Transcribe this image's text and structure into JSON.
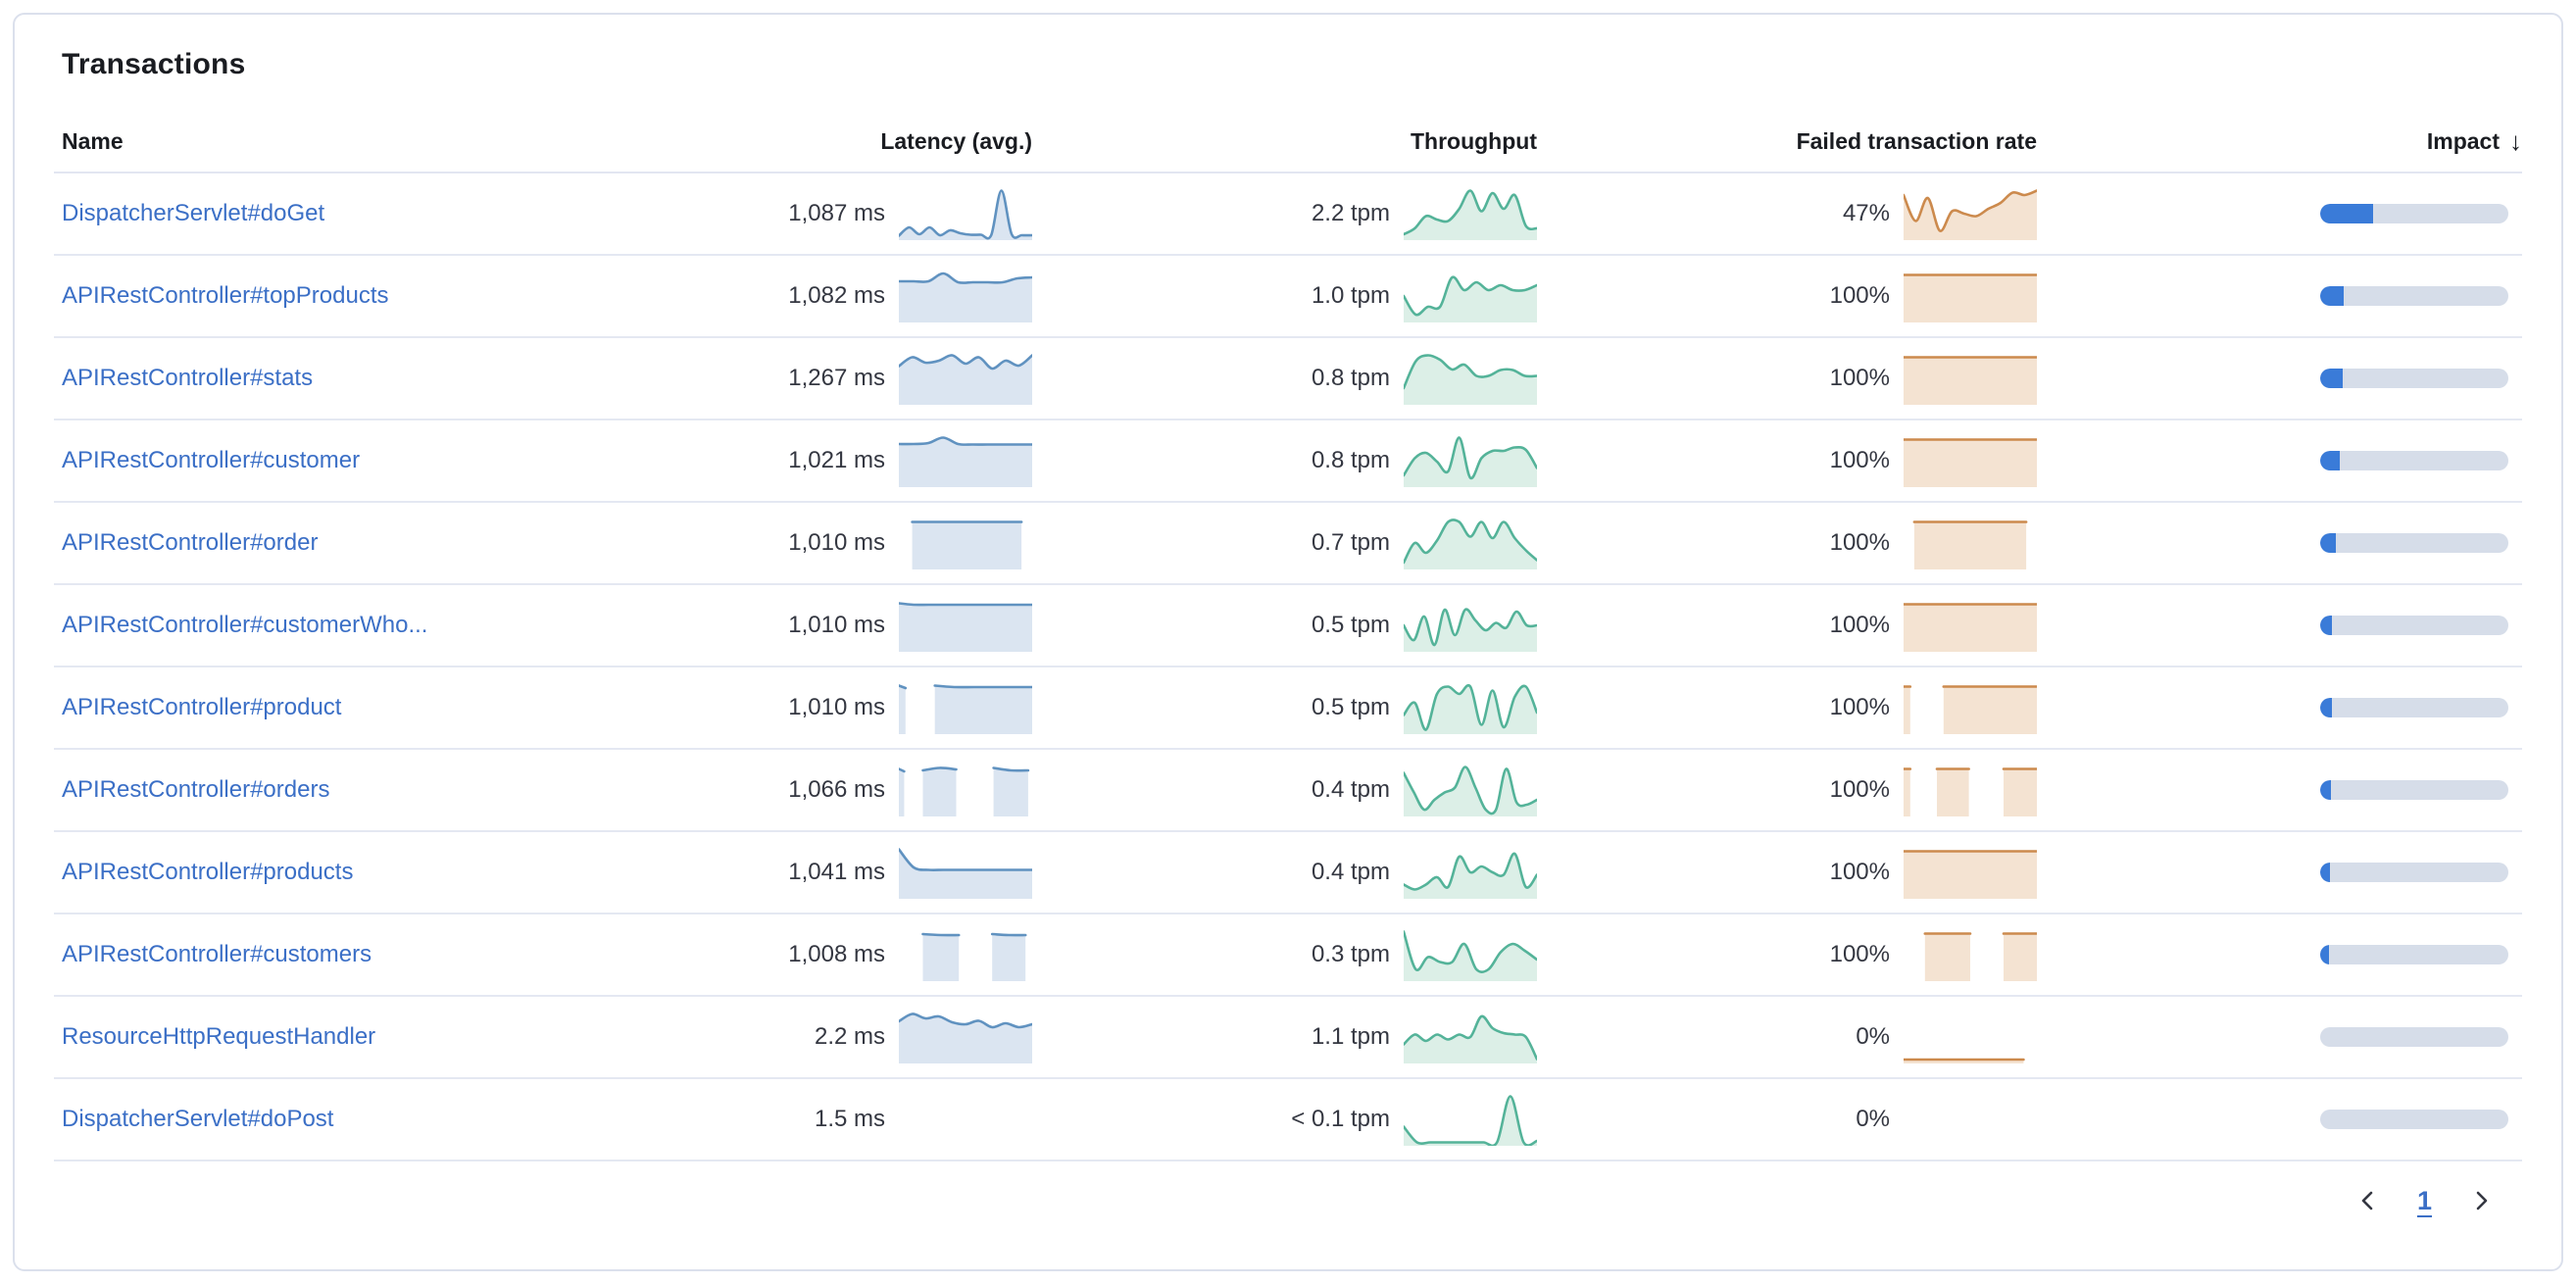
{
  "card": {
    "title": "Transactions"
  },
  "colors": {
    "link": "#3b6fc6",
    "latency_stroke": "#6092c0",
    "latency_fill": "#dbe5f1",
    "throughput_stroke": "#54b399",
    "throughput_fill": "#dcefe7",
    "failed_stroke": "#cc8a4d",
    "failed_fill": "#f4e3d2",
    "impact_fill": "#3a7bd8",
    "impact_track": "#d6dde9",
    "row_border": "#e4e8f2"
  },
  "table": {
    "sort_icon": "↓",
    "columns": [
      {
        "label": "Name"
      },
      {
        "label": "Latency (avg.)"
      },
      {
        "label": "Throughput"
      },
      {
        "label": "Failed transaction rate"
      },
      {
        "label": "Impact",
        "sorted": "desc"
      }
    ],
    "rows": [
      {
        "name": "DispatcherServlet#doGet",
        "latency": "1,087 ms",
        "throughput": "2.2 tpm",
        "failed_rate": "47%",
        "impact_pct": 28,
        "sparklines": {
          "latency": {
            "segments": [
              {
                "x0": 0,
                "x1": 1,
                "y": [
                  0.05,
                  0.22,
                  0.08,
                  0.22,
                  0.06,
                  0.16,
                  0.1,
                  0.07,
                  0.07,
                  0.06,
                  0.97,
                  0.08,
                  0.06,
                  0.06
                ]
              }
            ]
          },
          "throughput": {
            "segments": [
              {
                "x0": 0,
                "x1": 1,
                "y": [
                  0.08,
                  0.2,
                  0.45,
                  0.38,
                  0.35,
                  0.6,
                  0.97,
                  0.55,
                  0.92,
                  0.6,
                  0.88,
                  0.25,
                  0.2
                ]
              }
            ]
          },
          "failed": {
            "segments": [
              {
                "x0": 0,
                "x1": 1,
                "y": [
                  0.88,
                  0.35,
                  0.82,
                  0.15,
                  0.55,
                  0.5,
                  0.45,
                  0.6,
                  0.72,
                  0.93,
                  0.88,
                  0.97
                ]
              }
            ]
          }
        }
      },
      {
        "name": "APIRestController#topProducts",
        "latency": "1,082 ms",
        "throughput": "1.0 tpm",
        "failed_rate": "100%",
        "impact_pct": 12.5,
        "sparklines": {
          "latency": {
            "segments": [
              {
                "x0": 0,
                "x1": 1,
                "y": [
                  0.8,
                  0.8,
                  0.8,
                  0.96,
                  0.78,
                  0.78,
                  0.78,
                  0.78,
                  0.86,
                  0.88
                ]
              }
            ]
          },
          "throughput": {
            "segments": [
              {
                "x0": 0,
                "x1": 1,
                "y": [
                  0.5,
                  0.12,
                  0.28,
                  0.28,
                  0.88,
                  0.62,
                  0.78,
                  0.62,
                  0.72,
                  0.62,
                  0.62,
                  0.72
                ]
              }
            ]
          },
          "failed": {
            "segments": [
              {
                "x0": 0,
                "x1": 1,
                "y": [
                  0.93,
                  0.93
                ]
              }
            ]
          }
        }
      },
      {
        "name": "APIRestController#stats",
        "latency": "1,267 ms",
        "throughput": "0.8 tpm",
        "failed_rate": "100%",
        "impact_pct": 12,
        "sparklines": {
          "latency": {
            "segments": [
              {
                "x0": 0,
                "x1": 1,
                "y": [
                  0.75,
                  0.93,
                  0.82,
                  0.86,
                  0.97,
                  0.8,
                  0.93,
                  0.7,
                  0.86,
                  0.76,
                  0.97
                ]
              }
            ]
          },
          "throughput": {
            "segments": [
              {
                "x0": 0,
                "x1": 1,
                "y": [
                  0.3,
                  0.85,
                  0.97,
                  0.88,
                  0.68,
                  0.78,
                  0.55,
                  0.55,
                  0.67,
                  0.67,
                  0.55,
                  0.55
                ]
              }
            ]
          },
          "failed": {
            "segments": [
              {
                "x0": 0,
                "x1": 1,
                "y": [
                  0.93,
                  0.93
                ]
              }
            ]
          }
        }
      },
      {
        "name": "APIRestController#customer",
        "latency": "1,021 ms",
        "throughput": "0.8 tpm",
        "failed_rate": "100%",
        "impact_pct": 10.5,
        "sparklines": {
          "latency": {
            "segments": [
              {
                "x0": 0,
                "x1": 1,
                "y": [
                  0.84,
                  0.84,
                  0.86,
                  0.97,
                  0.84,
                  0.83,
                  0.83,
                  0.83,
                  0.83,
                  0.83
                ]
              }
            ]
          },
          "throughput": {
            "segments": [
              {
                "x0": 0,
                "x1": 1,
                "y": [
                  0.2,
                  0.55,
                  0.66,
                  0.48,
                  0.28,
                  0.97,
                  0.15,
                  0.55,
                  0.7,
                  0.7,
                  0.77,
                  0.72,
                  0.35
                ]
              }
            ]
          },
          "failed": {
            "segments": [
              {
                "x0": 0,
                "x1": 1,
                "y": [
                  0.93,
                  0.93
                ]
              }
            ]
          }
        }
      },
      {
        "name": "APIRestController#order",
        "latency": "1,010 ms",
        "throughput": "0.7 tpm",
        "failed_rate": "100%",
        "impact_pct": 8.5,
        "sparklines": {
          "latency": {
            "segments": [
              {
                "x0": 0.1,
                "x1": 0.92,
                "y": [
                  0.93,
                  0.93
                ]
              }
            ]
          },
          "throughput": {
            "segments": [
              {
                "x0": 0,
                "x1": 1,
                "y": [
                  0.1,
                  0.5,
                  0.3,
                  0.55,
                  0.93,
                  0.93,
                  0.63,
                  0.93,
                  0.6,
                  0.93,
                  0.6,
                  0.35,
                  0.15
                ]
              }
            ]
          },
          "failed": {
            "segments": [
              {
                "x0": 0.08,
                "x1": 0.92,
                "y": [
                  0.93,
                  0.93
                ]
              }
            ]
          }
        }
      },
      {
        "name": "APIRestController#customerWho...",
        "latency": "1,010 ms",
        "throughput": "0.5 tpm",
        "failed_rate": "100%",
        "impact_pct": 6.5,
        "sparklines": {
          "latency": {
            "segments": [
              {
                "x0": 0,
                "x1": 1,
                "y": [
                  0.95,
                  0.92,
                  0.92,
                  0.92,
                  0.92,
                  0.92,
                  0.92,
                  0.92,
                  0.92,
                  0.92
                ]
              }
            ]
          },
          "throughput": {
            "segments": [
              {
                "x0": 0,
                "x1": 1,
                "y": [
                  0.5,
                  0.2,
                  0.68,
                  0.1,
                  0.82,
                  0.3,
                  0.82,
                  0.6,
                  0.4,
                  0.55,
                  0.45,
                  0.78,
                  0.5,
                  0.5
                ]
              }
            ]
          },
          "failed": {
            "segments": [
              {
                "x0": 0,
                "x1": 1,
                "y": [
                  0.93,
                  0.93
                ]
              }
            ]
          }
        }
      },
      {
        "name": "APIRestController#product",
        "latency": "1,010 ms",
        "throughput": "0.5 tpm",
        "failed_rate": "100%",
        "impact_pct": 6,
        "sparklines": {
          "latency": {
            "segments": [
              {
                "x0": 0,
                "x1": 0.05,
                "y": [
                  0.95,
                  0.9
                ]
              },
              {
                "x0": 0.27,
                "x1": 1,
                "y": [
                  0.95,
                  0.92,
                  0.92,
                  0.92,
                  0.92,
                  0.92
                ]
              }
            ]
          },
          "throughput": {
            "segments": [
              {
                "x0": 0,
                "x1": 1,
                "y": [
                  0.35,
                  0.6,
                  0.05,
                  0.78,
                  0.93,
                  0.78,
                  0.93,
                  0.15,
                  0.85,
                  0.1,
                  0.72,
                  0.93,
                  0.4
                ]
              }
            ]
          },
          "failed": {
            "segments": [
              {
                "x0": 0,
                "x1": 0.05,
                "y": [
                  0.93,
                  0.93
                ]
              },
              {
                "x0": 0.3,
                "x1": 1,
                "y": [
                  0.93,
                  0.93
                ]
              }
            ]
          }
        }
      },
      {
        "name": "APIRestController#orders",
        "latency": "1,066 ms",
        "throughput": "0.4 tpm",
        "failed_rate": "100%",
        "impact_pct": 5.5,
        "sparklines": {
          "latency": {
            "segments": [
              {
                "x0": 0,
                "x1": 0.04,
                "y": [
                  0.93,
                  0.88
                ]
              },
              {
                "x0": 0.18,
                "x1": 0.43,
                "y": [
                  0.9,
                  0.95,
                  0.92
                ]
              },
              {
                "x0": 0.71,
                "x1": 0.97,
                "y": [
                  0.95,
                  0.9,
                  0.9
                ]
              }
            ]
          },
          "throughput": {
            "segments": [
              {
                "x0": 0,
                "x1": 1,
                "y": [
                  0.85,
                  0.45,
                  0.1,
                  0.3,
                  0.45,
                  0.55,
                  0.97,
                  0.55,
                  0.1,
                  0.1,
                  0.93,
                  0.25,
                  0.2,
                  0.3
                ]
              }
            ]
          },
          "failed": {
            "segments": [
              {
                "x0": 0,
                "x1": 0.05,
                "y": [
                  0.93,
                  0.93
                ]
              },
              {
                "x0": 0.25,
                "x1": 0.49,
                "y": [
                  0.93,
                  0.93
                ]
              },
              {
                "x0": 0.75,
                "x1": 1,
                "y": [
                  0.93,
                  0.93
                ]
              }
            ]
          }
        }
      },
      {
        "name": "APIRestController#products",
        "latency": "1,041 ms",
        "throughput": "0.4 tpm",
        "failed_rate": "100%",
        "impact_pct": 5,
        "sparklines": {
          "latency": {
            "segments": [
              {
                "x0": 0,
                "x1": 1,
                "y": [
                  0.97,
                  0.6,
                  0.55,
                  0.55,
                  0.55,
                  0.55,
                  0.55,
                  0.55,
                  0.55,
                  0.55
                ]
              }
            ]
          },
          "throughput": {
            "segments": [
              {
                "x0": 0,
                "x1": 1,
                "y": [
                  0.25,
                  0.15,
                  0.25,
                  0.4,
                  0.2,
                  0.82,
                  0.5,
                  0.62,
                  0.5,
                  0.45,
                  0.88,
                  0.2,
                  0.45
                ]
              }
            ]
          },
          "failed": {
            "segments": [
              {
                "x0": 0,
                "x1": 1,
                "y": [
                  0.93,
                  0.93
                ]
              }
            ]
          }
        }
      },
      {
        "name": "APIRestController#customers",
        "latency": "1,008 ms",
        "throughput": "0.3 tpm",
        "failed_rate": "100%",
        "impact_pct": 4.5,
        "sparklines": {
          "latency": {
            "segments": [
              {
                "x0": 0.18,
                "x1": 0.45,
                "y": [
                  0.92,
                  0.9,
                  0.9
                ]
              },
              {
                "x0": 0.7,
                "x1": 0.95,
                "y": [
                  0.92,
                  0.9,
                  0.9
                ]
              }
            ]
          },
          "throughput": {
            "segments": [
              {
                "x0": 0,
                "x1": 1,
                "y": [
                  0.97,
                  0.2,
                  0.45,
                  0.35,
                  0.35,
                  0.72,
                  0.2,
                  0.2,
                  0.55,
                  0.72,
                  0.58,
                  0.4
                ]
              }
            ]
          },
          "failed": {
            "segments": [
              {
                "x0": 0.16,
                "x1": 0.5,
                "y": [
                  0.93,
                  0.93
                ]
              },
              {
                "x0": 0.75,
                "x1": 1,
                "y": [
                  0.93,
                  0.93
                ]
              }
            ]
          }
        }
      },
      {
        "name": "ResourceHttpRequestHandler",
        "latency": "2.2 ms",
        "throughput": "1.1 tpm",
        "failed_rate": "0%",
        "impact_pct": 0,
        "sparklines": {
          "latency": {
            "segments": [
              {
                "x0": 0,
                "x1": 1,
                "y": [
                  0.82,
                  0.97,
                  0.88,
                  0.92,
                  0.8,
                  0.76,
                  0.83,
                  0.7,
                  0.78,
                  0.7,
                  0.76
                ]
              }
            ]
          },
          "throughput": {
            "segments": [
              {
                "x0": 0,
                "x1": 1,
                "y": [
                  0.35,
                  0.55,
                  0.42,
                  0.55,
                  0.45,
                  0.55,
                  0.5,
                  0.92,
                  0.68,
                  0.58,
                  0.55,
                  0.5,
                  0.05
                ]
              }
            ]
          },
          "failed": {
            "segments": [
              {
                "x0": 0,
                "x1": 0.9,
                "y": [
                  0.04,
                  0.04
                ]
              }
            ]
          }
        }
      },
      {
        "name": "DispatcherServlet#doPost",
        "latency": "1.5 ms",
        "throughput": "< 0.1 tpm",
        "failed_rate": "0%",
        "impact_pct": 0,
        "sparklines": {
          "latency": {
            "segments": []
          },
          "throughput": {
            "segments": [
              {
                "x0": 0,
                "x1": 1,
                "y": [
                  0.35,
                  0.03,
                  0.03,
                  0.03,
                  0.03,
                  0.03,
                  0.03,
                  0.03,
                  0.97,
                  0.03,
                  0.06
                ]
              }
            ]
          },
          "failed": {
            "segments": []
          }
        }
      }
    ]
  },
  "pagination": {
    "page": "1",
    "prev_icon": "chevron-left",
    "next_icon": "chevron-right"
  }
}
